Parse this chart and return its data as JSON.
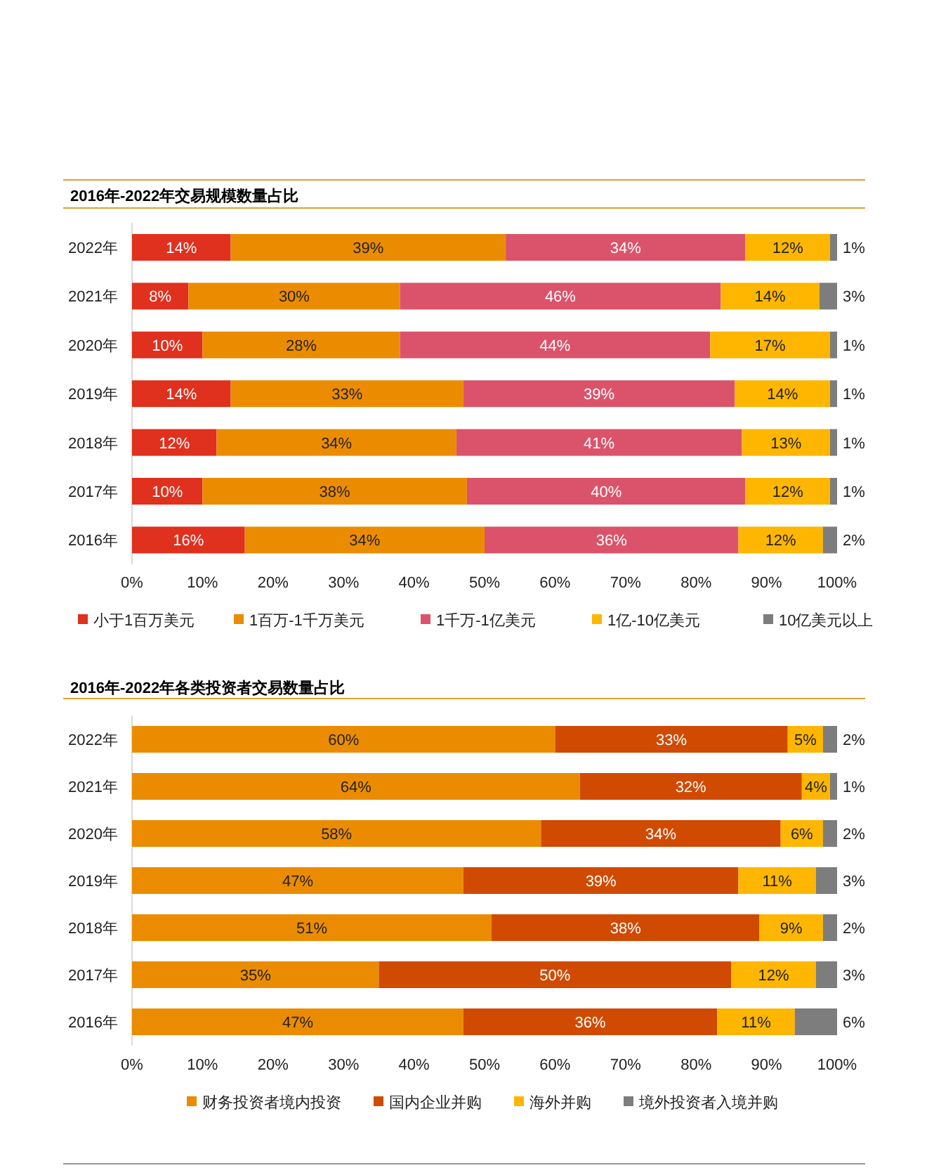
{
  "chart_data": [
    {
      "type": "bar",
      "orientation": "horizontal",
      "stacked": true,
      "title": "2016年-2022年交易规模数量占比",
      "categories": [
        "2022年",
        "2021年",
        "2020年",
        "2019年",
        "2018年",
        "2017年",
        "2016年"
      ],
      "series": [
        {
          "name": "小于1百万美元",
          "color": "#e0301e",
          "values": [
            14,
            8,
            10,
            14,
            12,
            10,
            16
          ],
          "value_labels": [
            "14%",
            "8%",
            "10%",
            "14%",
            "12%",
            "10%",
            "16%"
          ]
        },
        {
          "name": "1百万-1千万美元",
          "color": "#eb8c00",
          "values": [
            39,
            30,
            28,
            33,
            34,
            37.5,
            34
          ],
          "value_labels": [
            "39%",
            "30%",
            "28%",
            "33%",
            "34%",
            "38%",
            "34%"
          ]
        },
        {
          "name": "1千万-1亿美元",
          "color": "#db536a",
          "values": [
            34,
            45.5,
            44,
            38.5,
            40.5,
            39.5,
            36
          ],
          "value_labels": [
            "34%",
            "46%",
            "44%",
            "39%",
            "41%",
            "40%",
            "36%"
          ]
        },
        {
          "name": "1亿-10亿美元",
          "color": "#ffb600",
          "values": [
            12,
            14,
            17,
            13.5,
            12.5,
            12,
            12
          ],
          "value_labels": [
            "12%",
            "14%",
            "17%",
            "14%",
            "13%",
            "12%",
            "12%"
          ]
        },
        {
          "name": "10亿美元以上",
          "color": "#7d7d7d",
          "values": [
            1,
            2.5,
            1,
            1,
            1,
            1,
            2
          ],
          "value_labels": [
            "1%",
            "3%",
            "1%",
            "1%",
            "1%",
            "1%",
            "2%"
          ]
        }
      ],
      "xlim": [
        0,
        100
      ],
      "xticks": [
        {
          "value": 0,
          "label": "0%"
        },
        {
          "value": 10,
          "label": "10%"
        },
        {
          "value": 20,
          "label": "20%"
        },
        {
          "value": 30,
          "label": "30%"
        },
        {
          "value": 40,
          "label": "40%"
        },
        {
          "value": 50,
          "label": "50%"
        },
        {
          "value": 60,
          "label": "60%"
        },
        {
          "value": 70,
          "label": "70%"
        },
        {
          "value": 80,
          "label": "80%"
        },
        {
          "value": 90,
          "label": "90%"
        },
        {
          "value": 100,
          "label": "100%"
        }
      ],
      "legend": "bottom"
    },
    {
      "type": "bar",
      "orientation": "horizontal",
      "stacked": true,
      "title": "2016年-2022年各类投资者交易数量占比",
      "categories": [
        "2022年",
        "2021年",
        "2020年",
        "2019年",
        "2018年",
        "2017年",
        "2016年"
      ],
      "series": [
        {
          "name": "财务投资者境内投资",
          "color": "#eb8c00",
          "values": [
            60,
            63.5,
            58,
            47,
            51,
            35,
            47
          ],
          "value_labels": [
            "60%",
            "64%",
            "58%",
            "47%",
            "51%",
            "35%",
            "47%"
          ]
        },
        {
          "name": "国内企业并购",
          "color": "#d04a02",
          "values": [
            33,
            31.5,
            34,
            39,
            38,
            50,
            36
          ],
          "value_labels": [
            "33%",
            "32%",
            "34%",
            "39%",
            "38%",
            "50%",
            "36%"
          ]
        },
        {
          "name": "海外并购",
          "color": "#ffb600",
          "values": [
            5,
            4,
            6,
            11,
            9,
            12,
            11
          ],
          "value_labels": [
            "5%",
            "4%",
            "6%",
            "11%",
            "9%",
            "12%",
            "11%"
          ]
        },
        {
          "name": "境外投资者入境并购",
          "color": "#7d7d7d",
          "values": [
            2,
            1,
            2,
            3,
            2,
            3,
            6
          ],
          "value_labels": [
            "2%",
            "1%",
            "2%",
            "3%",
            "2%",
            "3%",
            "6%"
          ]
        }
      ],
      "xlim": [
        0,
        100
      ],
      "xticks": [
        {
          "value": 0,
          "label": "0%"
        },
        {
          "value": 10,
          "label": "10%"
        },
        {
          "value": 20,
          "label": "20%"
        },
        {
          "value": 30,
          "label": "30%"
        },
        {
          "value": 40,
          "label": "40%"
        },
        {
          "value": 50,
          "label": "50%"
        },
        {
          "value": 60,
          "label": "60%"
        },
        {
          "value": 70,
          "label": "70%"
        },
        {
          "value": 80,
          "label": "80%"
        },
        {
          "value": 90,
          "label": "90%"
        },
        {
          "value": 100,
          "label": "100%"
        }
      ],
      "legend": "bottom"
    }
  ]
}
